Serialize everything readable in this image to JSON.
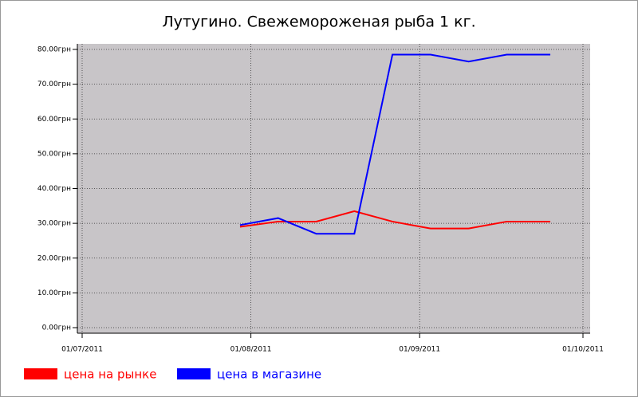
{
  "chart_data": {
    "type": "line",
    "title": "Лутугино. Свежемороженая рыба 1 кг.",
    "x": [
      "2011-07-30",
      "2011-08-06",
      "2011-08-13",
      "2011-08-20",
      "2011-08-27",
      "2011-09-03",
      "2011-09-10",
      "2011-09-17",
      "2011-09-25"
    ],
    "series": [
      {
        "name": "цена на рынке",
        "color": "#ff0000",
        "values": [
          29,
          30.5,
          30.5,
          33.5,
          30.5,
          28.5,
          28.5,
          30.5,
          30.5
        ]
      },
      {
        "name": "цена в магазине",
        "color": "#0000ff",
        "values": [
          29.5,
          31.5,
          27,
          27,
          78.5,
          78.5,
          76.5,
          78.5,
          78.5
        ]
      }
    ],
    "xlim": [
      "2011-07-01",
      "2011-10-01"
    ],
    "xticks": [
      {
        "value": "2011-07-01",
        "label": "01/07/2011"
      },
      {
        "value": "2011-08-01",
        "label": "01/08/2011"
      },
      {
        "value": "2011-09-01",
        "label": "01/09/2011"
      },
      {
        "value": "2011-10-01",
        "label": "01/10/2011"
      }
    ],
    "ylim": [
      0,
      80
    ],
    "yticks": [
      {
        "value": 0,
        "label": "0.00грн"
      },
      {
        "value": 10,
        "label": "10.00грн"
      },
      {
        "value": 20,
        "label": "20.00грн"
      },
      {
        "value": 30,
        "label": "30.00грн"
      },
      {
        "value": 40,
        "label": "40.00грн"
      },
      {
        "value": 50,
        "label": "50.00грн"
      },
      {
        "value": 60,
        "label": "60.00грн"
      },
      {
        "value": 70,
        "label": "70.00грн"
      },
      {
        "value": 80,
        "label": "80.00грн"
      }
    ],
    "grid": true,
    "background": "#c8c5c8"
  }
}
